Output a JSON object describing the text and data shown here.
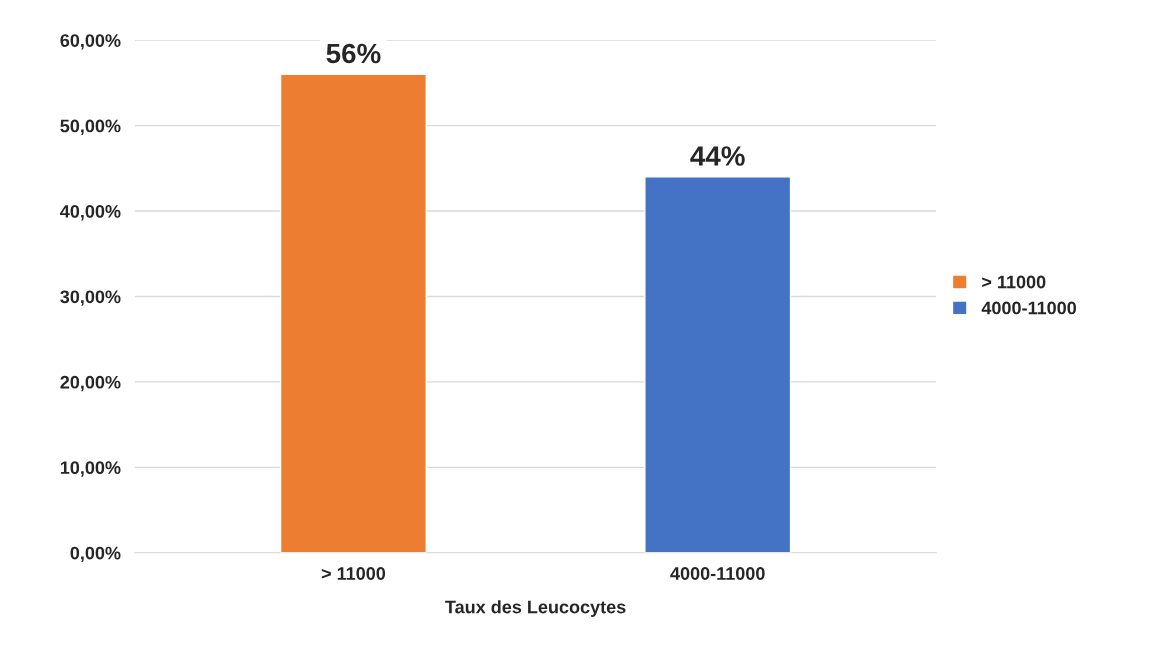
{
  "chart_data": {
    "type": "bar",
    "xlabel": "Taux des Leucocytes",
    "categories": [
      "> 11000",
      "4000-11000"
    ],
    "series": [
      {
        "name": "> 11000",
        "color": "#ed7d31",
        "values": [
          56,
          null
        ],
        "value_labels": [
          "56%",
          null
        ]
      },
      {
        "name": "4000-11000",
        "color": "#4472c4",
        "values": [
          null,
          44
        ],
        "value_labels": [
          null,
          "44%"
        ]
      }
    ],
    "ylim": [
      0,
      60
    ],
    "yticks": [
      {
        "value": 0,
        "label": "0,00%"
      },
      {
        "value": 10,
        "label": "10,00%"
      },
      {
        "value": 20,
        "label": "20,00%"
      },
      {
        "value": 30,
        "label": "30,00%"
      },
      {
        "value": 40,
        "label": "40,00%"
      },
      {
        "value": 50,
        "label": "50,00%"
      },
      {
        "value": 60,
        "label": "60,00%"
      }
    ],
    "grid": "y",
    "legend": "right"
  }
}
